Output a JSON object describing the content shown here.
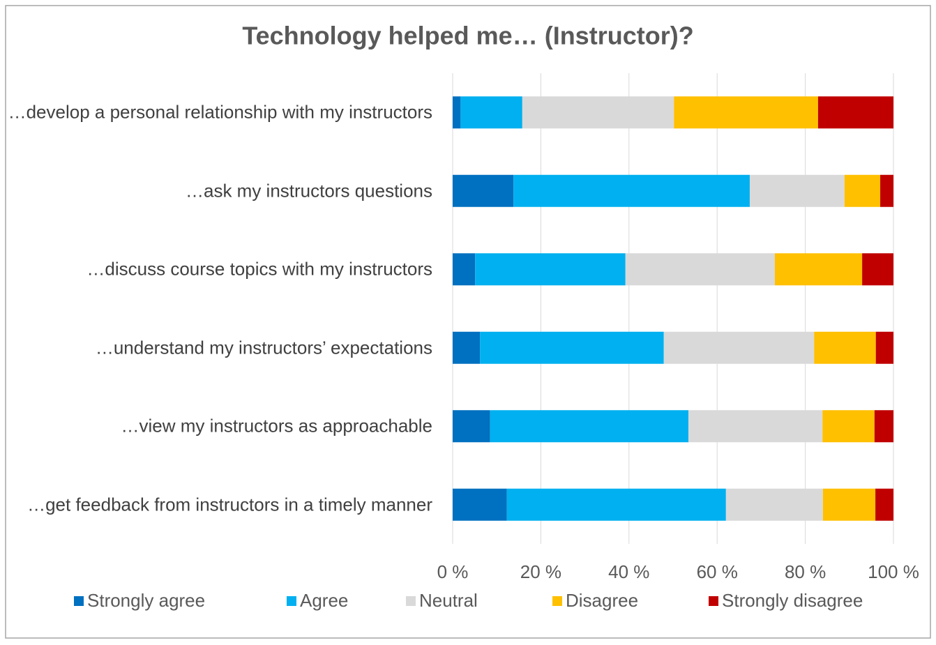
{
  "chart_data": {
    "type": "bar",
    "orientation": "horizontal",
    "stacked": true,
    "title": "Technology helped me… (Instructor)?",
    "categories": [
      "…develop a personal relationship with my instructors",
      "…ask my instructors questions",
      "…discuss course topics with my instructors",
      "…understand my instructors’ expectations",
      "…view my instructors as approachable",
      "…get feedback from instructors in a timely manner"
    ],
    "series": [
      {
        "name": "Strongly agree",
        "color": "#0070c0",
        "values": [
          1.8,
          13.8,
          5.1,
          6.2,
          8.5,
          12.3
        ]
      },
      {
        "name": "Agree",
        "color": "#00b0f0",
        "values": [
          14,
          53.6,
          34.1,
          41.7,
          45,
          49.7
        ]
      },
      {
        "name": "Neutral",
        "color": "#d9d9d9",
        "values": [
          34.4,
          21.5,
          33.9,
          34.1,
          30.4,
          22
        ]
      },
      {
        "name": "Disagree",
        "color": "#ffc000",
        "values": [
          32.7,
          8.1,
          19.8,
          14,
          11.8,
          11.9
        ]
      },
      {
        "name": "Strongly disagree",
        "color": "#c00000",
        "values": [
          17.1,
          3,
          7.1,
          4,
          4.3,
          4.1
        ]
      }
    ],
    "xlim": [
      0,
      100
    ],
    "xticks": [
      {
        "value": 0,
        "label": "0 %"
      },
      {
        "value": 20,
        "label": "20 %"
      },
      {
        "value": 40,
        "label": "40 %"
      },
      {
        "value": 60,
        "label": "60 %"
      },
      {
        "value": 80,
        "label": "80 %"
      },
      {
        "value": 100,
        "label": "100 %"
      }
    ],
    "grid": true,
    "legend": "bottom"
  }
}
